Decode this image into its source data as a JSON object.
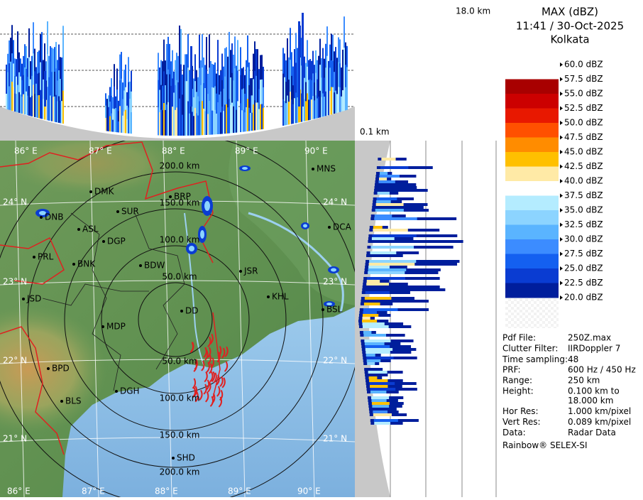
{
  "top_panel": {
    "height_label": "18.0 km"
  },
  "side_panel": {
    "height_label": "0.1 km"
  },
  "header": {
    "title": "MAX (dBZ)",
    "datetime": "11:41 / 30-Oct-2025",
    "station": "Kolkata"
  },
  "legend": {
    "items": [
      {
        "label": "60.0 dBZ",
        "color": "#ffffff"
      },
      {
        "label": "57.5 dBZ",
        "color": "#a80000"
      },
      {
        "label": "55.0 dBZ",
        "color": "#cc0000"
      },
      {
        "label": "52.5 dBZ",
        "color": "#e81800"
      },
      {
        "label": "50.0 dBZ",
        "color": "#ff5000"
      },
      {
        "label": "47.5 dBZ",
        "color": "#ff8c00"
      },
      {
        "label": "45.0 dBZ",
        "color": "#ffc000"
      },
      {
        "label": "42.5 dBZ",
        "color": "#ffeaa6"
      },
      {
        "label": "40.0 dBZ",
        "color": "#ffffff"
      },
      {
        "label": "37.5 dBZ",
        "color": "#b4ecff"
      },
      {
        "label": "35.0 dBZ",
        "color": "#8cd4ff"
      },
      {
        "label": "32.5 dBZ",
        "color": "#5ab4ff"
      },
      {
        "label": "30.0 dBZ",
        "color": "#3c8cff"
      },
      {
        "label": "27.5 dBZ",
        "color": "#1460f0"
      },
      {
        "label": "25.0 dBZ",
        "color": "#0a3cd2"
      },
      {
        "label": "22.5 dBZ",
        "color": "#001e9c"
      },
      {
        "label": "20.0 dBZ"
      }
    ]
  },
  "info": {
    "rows": [
      [
        "Pdf File:",
        "250Z.max"
      ],
      [
        "Clutter Filter:",
        "IIRDoppler 7"
      ],
      [
        "Time sampling:",
        "48"
      ],
      [
        "PRF:",
        "600 Hz / 450 Hz"
      ],
      [
        "Range:",
        "250 km"
      ],
      [
        "Height:",
        "0.100 km to",
        "18.000 km"
      ],
      [
        "Hor Res:",
        "1.000 km/pixel"
      ],
      [
        "Vert Res:",
        "0.089 km/pixel"
      ],
      [
        "Data:",
        "Radar Data"
      ]
    ],
    "footer": "Rainbow® SELEX-SI"
  },
  "map": {
    "lon_labels": [
      "86° E",
      "87° E",
      "88° E",
      "89° E",
      "90° E"
    ],
    "lat_labels": [
      "24° N",
      "23° N",
      "22° N",
      "21° N"
    ],
    "range_labels": [
      "50.0 km",
      "100.0 km",
      "150.0 km",
      "200.0 km"
    ],
    "cities": [
      "MNS",
      "DMK",
      "BRP",
      "DNB",
      "SUR",
      "ASL",
      "DGP",
      "DCA",
      "PRL",
      "BNK",
      "BDW",
      "JSR",
      "JSD",
      "KHL",
      "BSL",
      "DD",
      "MDP",
      "BPD",
      "DGH",
      "BLS",
      "SHD"
    ]
  }
}
